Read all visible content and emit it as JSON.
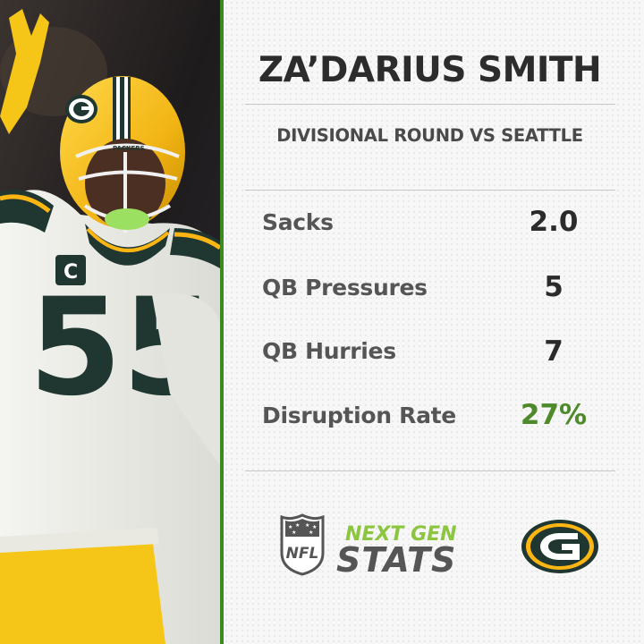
{
  "player": {
    "name": "ZA’DARIUS SMITH",
    "game": "DIVISIONAL ROUND VS SEATTLE"
  },
  "stats": [
    {
      "label": "Sacks",
      "value": "2.0"
    },
    {
      "label": "QB Pressures",
      "value": "5"
    },
    {
      "label": "QB Hurries",
      "value": "7"
    },
    {
      "label": "Disruption Rate",
      "value": "27%"
    }
  ],
  "branding": {
    "nfl_shield_text": "NFL",
    "next_gen_line1": "NEXT GEN",
    "next_gen_line2": "STATS",
    "team_logo": "packers-g-logo"
  },
  "photo": {
    "jersey_number": "55",
    "collar_patch": "C",
    "helmet_text": "PACKERS"
  },
  "colors": {
    "accent_green": "#4e8a2a",
    "ngs_green": "#8cc63f",
    "packers_green": "#203731",
    "packers_gold": "#ffb612"
  }
}
